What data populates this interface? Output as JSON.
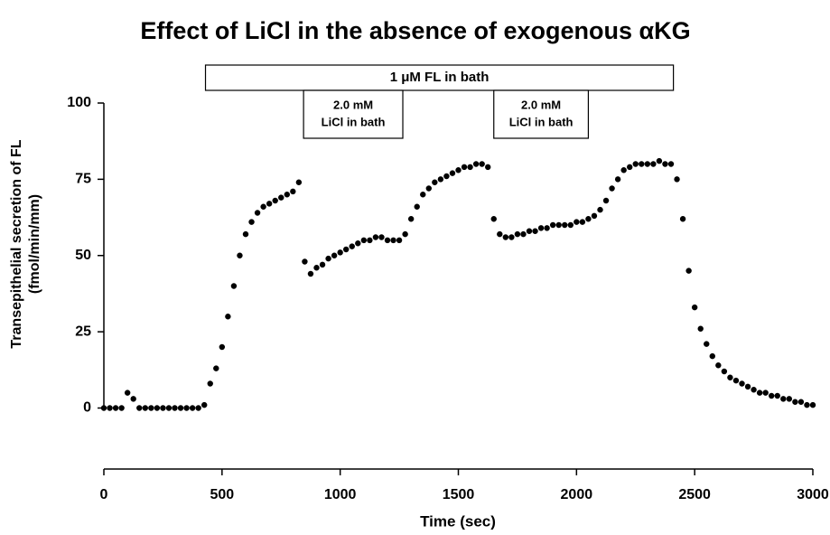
{
  "chart_data": {
    "type": "scatter",
    "title": "Effect of LiCl in the absence of exogenous αKG",
    "x_label": "Time (sec)",
    "y_label": [
      "Transepithelial secretion of FL",
      "(fmol/min/mm)"
    ],
    "annotations": [
      {
        "lines": [
          "1 μM FL in bath"
        ],
        "start": 430,
        "end": 2410
      },
      {
        "lines": [
          "2.0 mM",
          "LiCl in bath"
        ],
        "start": 845,
        "end": 1265
      },
      {
        "lines": [
          "2.0 mM",
          "LiCl in bath"
        ],
        "start": 1650,
        "end": 2050
      }
    ],
    "color": "#000000",
    "xlim": [
      0,
      3000
    ],
    "xticks": [
      0,
      500,
      1000,
      1500,
      2000,
      2500,
      3000
    ],
    "ylim": [
      -20,
      100
    ],
    "yticks": [
      0,
      25,
      50,
      75,
      100
    ],
    "x": [
      0,
      25,
      50,
      75,
      100,
      125,
      150,
      175,
      200,
      225,
      250,
      275,
      300,
      325,
      350,
      375,
      400,
      425,
      450,
      475,
      500,
      525,
      550,
      575,
      600,
      625,
      650,
      675,
      700,
      725,
      750,
      775,
      800,
      825,
      850,
      875,
      900,
      925,
      950,
      975,
      1000,
      1025,
      1050,
      1075,
      1100,
      1125,
      1150,
      1175,
      1200,
      1225,
      1250,
      1275,
      1300,
      1325,
      1350,
      1375,
      1400,
      1425,
      1450,
      1475,
      1500,
      1525,
      1550,
      1575,
      1600,
      1625,
      1650,
      1675,
      1700,
      1725,
      1750,
      1775,
      1800,
      1825,
      1850,
      1875,
      1900,
      1925,
      1950,
      1975,
      2000,
      2025,
      2050,
      2075,
      2100,
      2125,
      2150,
      2175,
      2200,
      2225,
      2250,
      2275,
      2300,
      2325,
      2350,
      2375,
      2400,
      2425,
      2450,
      2475,
      2500,
      2525,
      2550,
      2575,
      2600,
      2625,
      2650,
      2675,
      2700,
      2725,
      2750,
      2775,
      2800,
      2825,
      2850,
      2875,
      2900,
      2925,
      2950,
      2975,
      3000
    ],
    "values": [
      0,
      0,
      0,
      0,
      5,
      3,
      0,
      0,
      0,
      0,
      0,
      0,
      0,
      0,
      0,
      0,
      0,
      1,
      8,
      13,
      20,
      30,
      40,
      50,
      57,
      61,
      64,
      66,
      67,
      68,
      69,
      70,
      71,
      74,
      48,
      44,
      46,
      47,
      49,
      50,
      51,
      52,
      53,
      54,
      55,
      55,
      56,
      56,
      55,
      55,
      55,
      57,
      62,
      66,
      70,
      72,
      74,
      75,
      76,
      77,
      78,
      79,
      79,
      80,
      80,
      79,
      62,
      57,
      56,
      56,
      57,
      57,
      58,
      58,
      59,
      59,
      60,
      60,
      60,
      60,
      61,
      61,
      62,
      63,
      65,
      68,
      72,
      75,
      78,
      79,
      80,
      80,
      80,
      80,
      81,
      80,
      80,
      75,
      62,
      45,
      33,
      26,
      21,
      17,
      14,
      12,
      10,
      9,
      8,
      7,
      6,
      5,
      5,
      4,
      4,
      3,
      3,
      2,
      2,
      1,
      1
    ]
  }
}
